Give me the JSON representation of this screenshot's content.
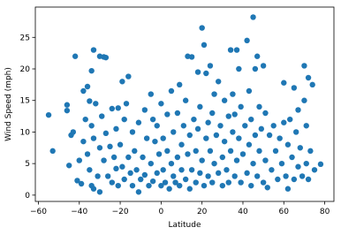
{
  "chart_data": {
    "type": "scatter",
    "xlabel": "Latitude",
    "ylabel": "Wind Speed (mph)",
    "color": "#1f77b4",
    "xlim": [
      -61.5,
      84.5
    ],
    "ylim": [
      -1,
      29.8
    ],
    "xticks": [
      {
        "value": -60,
        "label": "−60"
      },
      {
        "value": -40,
        "label": "−40"
      },
      {
        "value": -20,
        "label": "−20"
      },
      0,
      20,
      40,
      60,
      80
    ],
    "yticks": [
      0,
      5,
      10,
      15,
      20,
      25
    ],
    "x": [
      -55,
      -53,
      -46,
      -46,
      -45,
      -44,
      -43,
      -42,
      -41,
      -40,
      -39,
      -38,
      -38,
      -37,
      -36,
      -36,
      -35,
      -35,
      -34,
      -34,
      -34,
      -33,
      -33,
      -33,
      -32,
      -31,
      -30,
      -30,
      -30,
      -29,
      -28,
      -28,
      -27,
      -27,
      -26,
      -25,
      -24,
      -24,
      -23,
      -22,
      -22,
      -21,
      -21,
      -20,
      -19,
      -19,
      -18,
      -18,
      -17,
      -16,
      -16,
      -15,
      -14,
      -14,
      -13,
      -12,
      -11,
      -11,
      -10,
      -9,
      -8,
      -8,
      -7,
      -6,
      -5,
      -5,
      -4,
      -4,
      -3,
      -2,
      -2,
      -1,
      0,
      0,
      1,
      1,
      2,
      3,
      3,
      4,
      5,
      5,
      6,
      6,
      7,
      8,
      8,
      9,
      9,
      10,
      10,
      11,
      12,
      12,
      13,
      13,
      14,
      14,
      15,
      15,
      16,
      17,
      17,
      18,
      18,
      19,
      19,
      20,
      20,
      21,
      21,
      22,
      22,
      23,
      23,
      24,
      24,
      25,
      25,
      26,
      26,
      27,
      28,
      28,
      29,
      30,
      30,
      31,
      31,
      32,
      33,
      33,
      34,
      34,
      35,
      35,
      36,
      36,
      37,
      37,
      38,
      38,
      39,
      39,
      40,
      41,
      42,
      42,
      43,
      43,
      44,
      44,
      45,
      45,
      46,
      46,
      47,
      47,
      48,
      48,
      49,
      50,
      50,
      51,
      51,
      52,
      53,
      54,
      55,
      56,
      57,
      58,
      59,
      60,
      60,
      61,
      62,
      62,
      63,
      64,
      65,
      65,
      66,
      67,
      67,
      68,
      69,
      70,
      70,
      71,
      71,
      72,
      72,
      73,
      74,
      75,
      78
    ],
    "values": [
      12.7,
      7,
      14.3,
      13.4,
      4.7,
      9.5,
      10,
      22,
      2.3,
      5.5,
      1.8,
      16.5,
      8.5,
      12,
      17.2,
      6.5,
      14.9,
      4,
      19.7,
      11,
      1.5,
      23,
      9,
      1,
      14.5,
      3,
      22,
      7.5,
      0.5,
      12.5,
      21.9,
      5.5,
      21.8,
      9.8,
      3,
      7.7,
      13.7,
      2,
      6,
      10.5,
      4.2,
      13.8,
      1.5,
      8,
      18,
      4.5,
      12,
      2.5,
      14.5,
      18.8,
      6,
      3.5,
      10,
      1.5,
      7,
      4,
      0.5,
      11.5,
      2.5,
      6,
      13.5,
      3.2,
      9,
      1.5,
      16,
      5,
      12,
      2.2,
      8.5,
      3.5,
      11,
      6.5,
      1.5,
      14.5,
      4,
      9,
      2,
      7,
      12.8,
      1,
      16.5,
      5,
      3,
      10,
      2,
      13,
      6,
      17.5,
      1.5,
      8,
      4,
      11,
      2.5,
      15,
      22,
      6.5,
      1,
      9.5,
      4,
      21.9,
      12,
      2,
      7,
      10.5,
      19.5,
      3.5,
      14,
      26.5,
      5.5,
      23.8,
      1.5,
      19.3,
      9,
      11.5,
      3,
      20.5,
      7,
      13,
      2,
      16,
      5,
      9.5,
      18,
      3.5,
      11,
      6,
      1.5,
      15,
      8.5,
      4,
      12.5,
      2,
      23,
      7,
      10,
      16,
      3,
      12.8,
      5.5,
      23,
      20,
      9,
      2,
      14,
      6.5,
      11,
      24.5,
      3.5,
      8,
      16.5,
      1.5,
      12,
      28.2,
      5,
      20,
      9.5,
      22,
      3,
      14,
      7,
      10.5,
      20.5,
      2,
      5.5,
      13,
      1.2,
      9.5,
      4,
      11,
      7,
      2.5,
      9,
      5,
      17.8,
      11.5,
      3,
      1,
      8,
      12,
      6,
      17,
      2.5,
      10,
      4.5,
      13.5,
      7.5,
      3,
      20.5,
      15,
      5,
      11,
      18.6,
      2.5,
      7,
      17.5,
      4,
      4.9
    ]
  }
}
